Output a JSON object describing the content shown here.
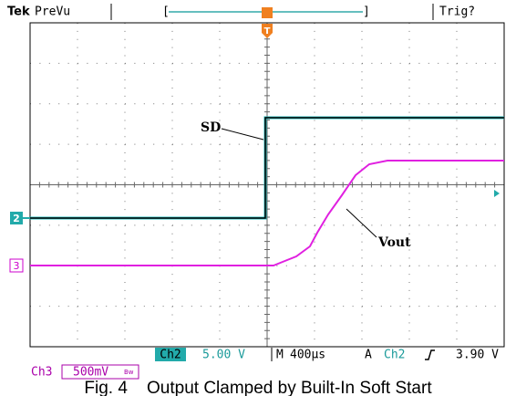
{
  "header": {
    "brand": "Tek",
    "mode": "PreVu",
    "trigger_status": "Trig?",
    "trigger_marker": "T"
  },
  "annotations": {
    "sd": "SD",
    "vout": "Vout"
  },
  "channel_markers": {
    "ch2": "2",
    "ch3": "3"
  },
  "status_bar": {
    "ch2_label": "Ch2",
    "ch2_scale": "5.00 V",
    "time_prefix": "M",
    "time_scale": "400µs",
    "trigger_prefix": "A",
    "trigger_source": "Ch2",
    "trigger_level": "3.90 V",
    "ch3_label": "Ch3",
    "ch3_scale": "500mV",
    "bandwidth": "Bw"
  },
  "caption": "Fig. 4    Output Clamped by Built-In Soft Start"
}
